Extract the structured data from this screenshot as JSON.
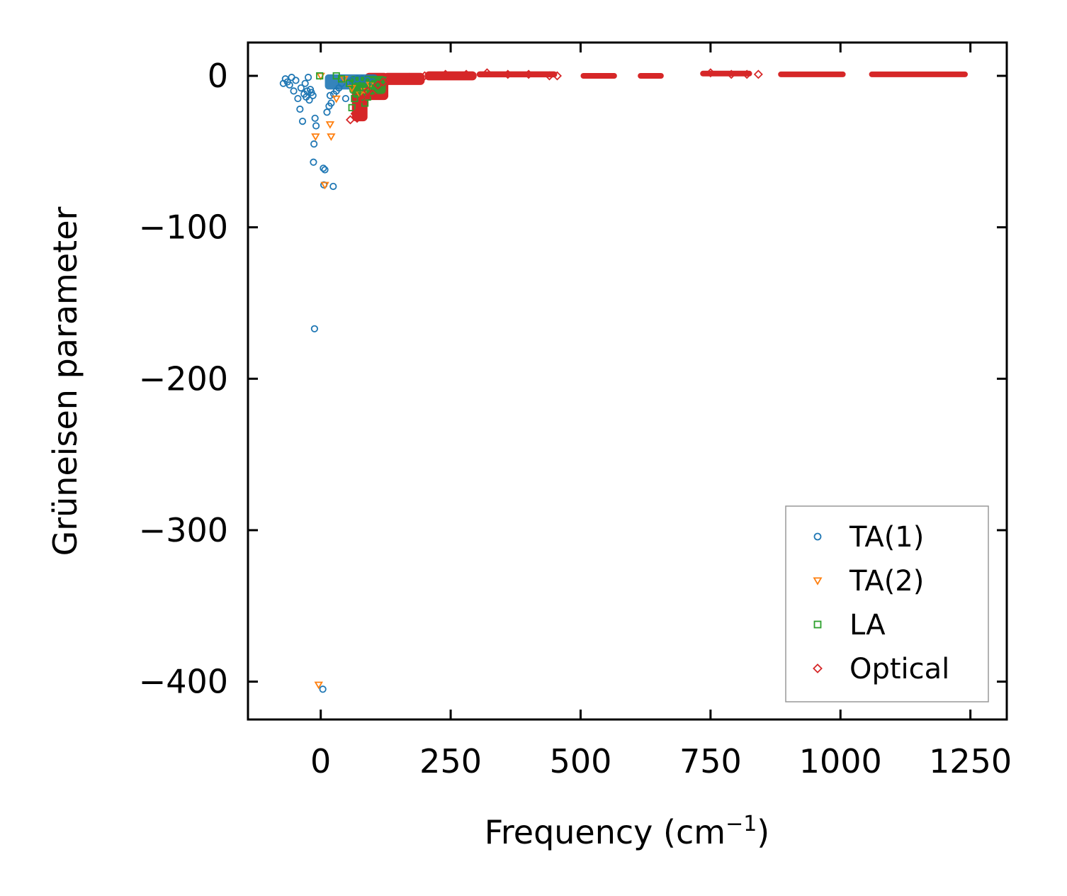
{
  "chart_data": {
    "type": "scatter",
    "title": "",
    "xlabel": "Frequency (cm",
    "xlabel_sup": "−1",
    "xlabel_end": ")",
    "ylabel": "Grüneisen parameter",
    "xlim": [
      -140,
      1320
    ],
    "ylim": [
      -425,
      22
    ],
    "xticks": [
      0,
      250,
      500,
      750,
      1000,
      1250
    ],
    "xtick_labels": [
      "0",
      "250",
      "500",
      "750",
      "1000",
      "1250"
    ],
    "yticks": [
      0,
      -100,
      -200,
      -300,
      -400
    ],
    "ytick_labels": [
      "0",
      "−100",
      "−200",
      "−300",
      "−400"
    ],
    "grid": false,
    "legend_position": "bottom-right",
    "series": [
      {
        "name": "TA(1)",
        "marker": "circle",
        "color": "#1f77b4",
        "points": [
          [
            -72,
            -5
          ],
          [
            -68,
            -2
          ],
          [
            -64,
            -4
          ],
          [
            -60,
            -6
          ],
          [
            -56,
            -1
          ],
          [
            -52,
            -10
          ],
          [
            -48,
            -3
          ],
          [
            -44,
            -15
          ],
          [
            -40,
            -22
          ],
          [
            -38,
            -8
          ],
          [
            -35,
            -30
          ],
          [
            -32,
            -12
          ],
          [
            -30,
            -5
          ],
          [
            -28,
            -14
          ],
          [
            -26,
            -10
          ],
          [
            -24,
            -1
          ],
          [
            -22,
            -16
          ],
          [
            -20,
            -9
          ],
          [
            -18,
            -11
          ],
          [
            -15,
            -13
          ],
          [
            -13,
            -45
          ],
          [
            -11,
            -28
          ],
          [
            -9,
            -33
          ],
          [
            -14,
            -57
          ],
          [
            -12,
            -167
          ],
          [
            5,
            -61
          ],
          [
            8,
            -62
          ],
          [
            6,
            -72
          ],
          [
            24,
            -73
          ],
          [
            12,
            -24
          ],
          [
            16,
            -20
          ],
          [
            20,
            -18
          ],
          [
            18,
            -13
          ],
          [
            25,
            -12
          ],
          [
            30,
            -10
          ],
          [
            35,
            -8
          ],
          [
            40,
            -5
          ],
          [
            48,
            -15
          ],
          [
            55,
            -4
          ],
          [
            60,
            -3
          ],
          [
            70,
            -2
          ],
          [
            80,
            -2
          ],
          [
            90,
            -3
          ],
          [
            100,
            -4
          ],
          [
            110,
            -5
          ],
          [
            4,
            -405
          ]
        ]
      },
      {
        "name": "TA(2)",
        "marker": "triangle",
        "color": "#ff7f0e",
        "points": [
          [
            -10,
            -40
          ],
          [
            18,
            -32
          ],
          [
            20,
            -40
          ],
          [
            8,
            -72
          ],
          [
            -4,
            -402
          ],
          [
            0,
            0
          ],
          [
            30,
            -15
          ],
          [
            45,
            -2
          ],
          [
            60,
            -8
          ],
          [
            75,
            -12
          ],
          [
            85,
            -10
          ],
          [
            95,
            -6
          ]
        ]
      },
      {
        "name": "LA",
        "marker": "square",
        "color": "#2ca02c",
        "points": [
          [
            -2,
            0
          ],
          [
            30,
            0
          ],
          [
            40,
            -2
          ],
          [
            55,
            -5
          ],
          [
            60,
            -21
          ],
          [
            65,
            -15
          ],
          [
            70,
            -12
          ],
          [
            75,
            -8
          ],
          [
            85,
            -18
          ],
          [
            90,
            -14
          ],
          [
            95,
            -10
          ],
          [
            100,
            -6
          ],
          [
            105,
            -8
          ],
          [
            110,
            -5
          ],
          [
            115,
            -4
          ],
          [
            120,
            -3
          ]
        ]
      },
      {
        "name": "Optical",
        "marker": "diamond",
        "color": "#d62728",
        "points": [
          [
            57,
            -29
          ],
          [
            66,
            -25
          ],
          [
            70,
            -28
          ],
          [
            80,
            -15
          ],
          [
            90,
            -10
          ],
          [
            100,
            -12
          ],
          [
            110,
            -6
          ],
          [
            120,
            -4
          ],
          [
            130,
            -3
          ],
          [
            150,
            -2
          ],
          [
            170,
            -1
          ],
          [
            200,
            0
          ],
          [
            240,
            1
          ],
          [
            280,
            1
          ],
          [
            320,
            2
          ],
          [
            360,
            1
          ],
          [
            400,
            1
          ],
          [
            440,
            0
          ],
          [
            455,
            0
          ],
          [
            750,
            2
          ],
          [
            790,
            1
          ],
          [
            820,
            1
          ],
          [
            842,
            1
          ]
        ],
        "bands": [
          {
            "x0": 60,
            "x1": 90,
            "y": -18,
            "spread": 12
          },
          {
            "x0": 85,
            "x1": 130,
            "y": -7,
            "spread": 9
          },
          {
            "x0": 120,
            "x1": 200,
            "y": -2,
            "spread": 4
          },
          {
            "x0": 200,
            "x1": 300,
            "y": 0,
            "spread": 3
          },
          {
            "x0": 300,
            "x1": 455,
            "y": 1,
            "spread": 2
          },
          {
            "x0": 500,
            "x1": 570,
            "y": 0,
            "spread": 1.5
          },
          {
            "x0": 610,
            "x1": 660,
            "y": 0,
            "spread": 1.5
          },
          {
            "x0": 730,
            "x1": 830,
            "y": 1.5,
            "spread": 1.5
          },
          {
            "x0": 880,
            "x1": 1010,
            "y": 1,
            "spread": 1.5
          },
          {
            "x0": 1055,
            "x1": 1245,
            "y": 1,
            "spread": 1.5
          }
        ]
      }
    ],
    "dense_clusters": [
      {
        "series": "TA(1)",
        "x0": 8,
        "x1": 110,
        "y": -4,
        "spread": 5
      },
      {
        "series": "LA",
        "x0": 55,
        "x1": 125,
        "y": -6,
        "spread": 6
      }
    ]
  }
}
